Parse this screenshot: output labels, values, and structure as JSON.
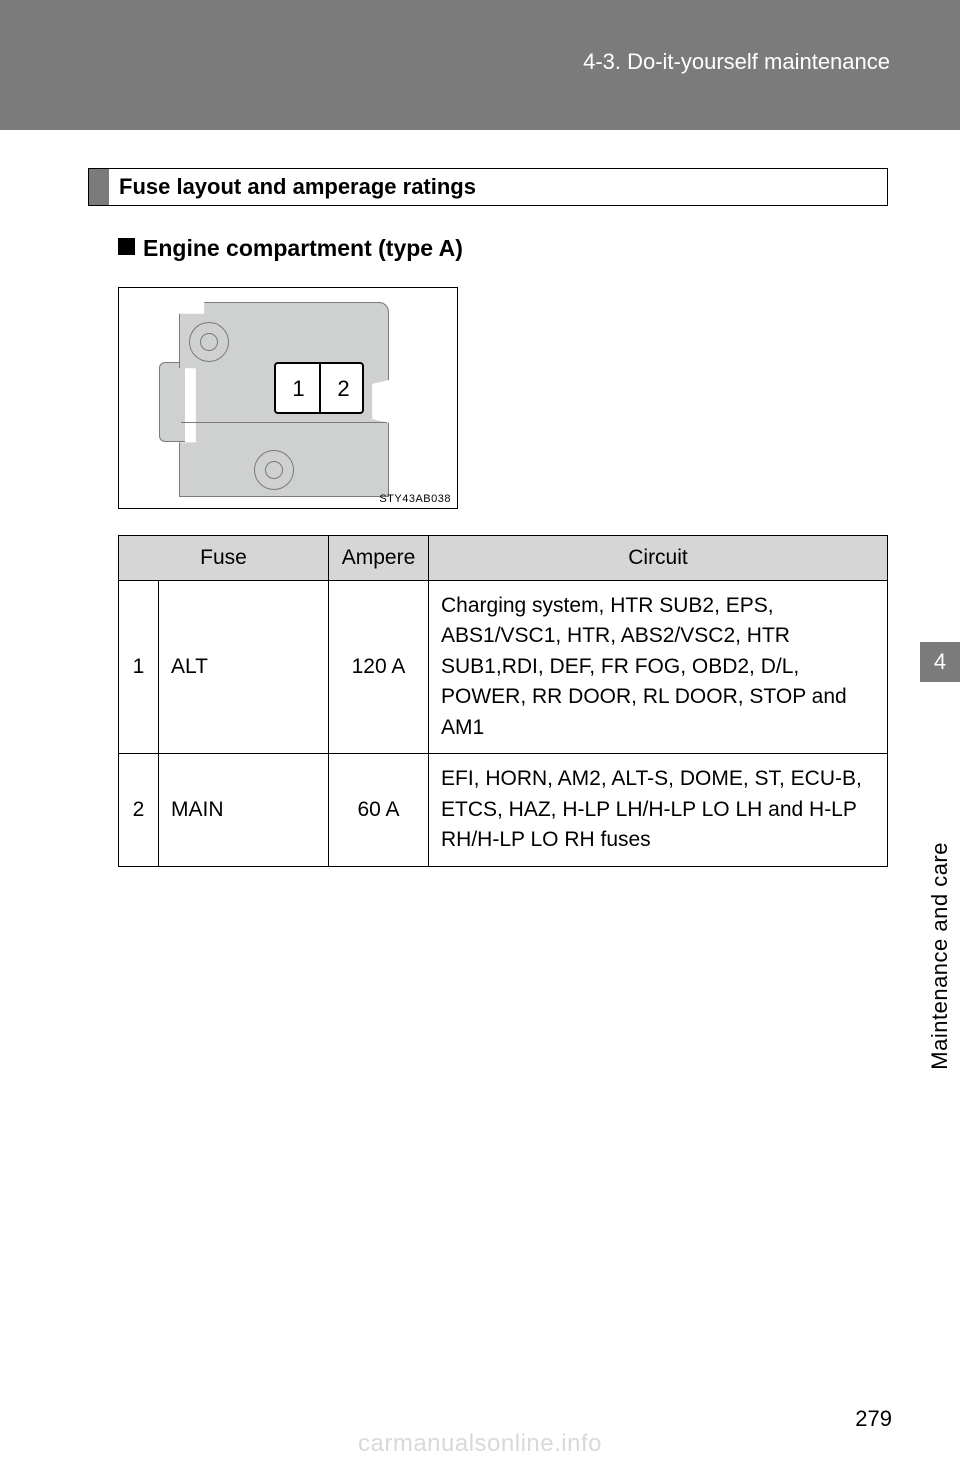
{
  "header": {
    "chapter": "4-3. Do-it-yourself maintenance"
  },
  "section": {
    "title": "Fuse layout and amperage ratings"
  },
  "subsection": {
    "title": "Engine compartment (type A)"
  },
  "figure": {
    "code": "STY43AB038",
    "fuse_labels": {
      "one": "1",
      "two": "2"
    }
  },
  "table": {
    "headers": {
      "fuse": "Fuse",
      "ampere": "Ampere",
      "circuit": "Circuit"
    },
    "rows": [
      {
        "num": "1",
        "name": "ALT",
        "ampere": "120 A",
        "circuit": "Charging system, HTR SUB2, EPS, ABS1/VSC1, HTR, ABS2/VSC2, HTR SUB1,RDI, DEF, FR FOG, OBD2, D/L, POWER, RR DOOR, RL DOOR, STOP and AM1"
      },
      {
        "num": "2",
        "name": "MAIN",
        "ampere": "60 A",
        "circuit": "EFI, HORN, AM2, ALT-S, DOME, ST, ECU-B, ETCS, HAZ, H-LP LH/H-LP LO LH and H-LP RH/H-LP LO RH fuses"
      }
    ]
  },
  "sidetab": {
    "chapter_num": "4",
    "label": "Maintenance and care"
  },
  "page_number": "279",
  "watermark": "carmanualsonline.info",
  "colors": {
    "band": "#7b7b7b",
    "table_header": "#d6d6d6",
    "diagram_fill": "#cfd0d0",
    "watermark": "#d9d9d9"
  }
}
